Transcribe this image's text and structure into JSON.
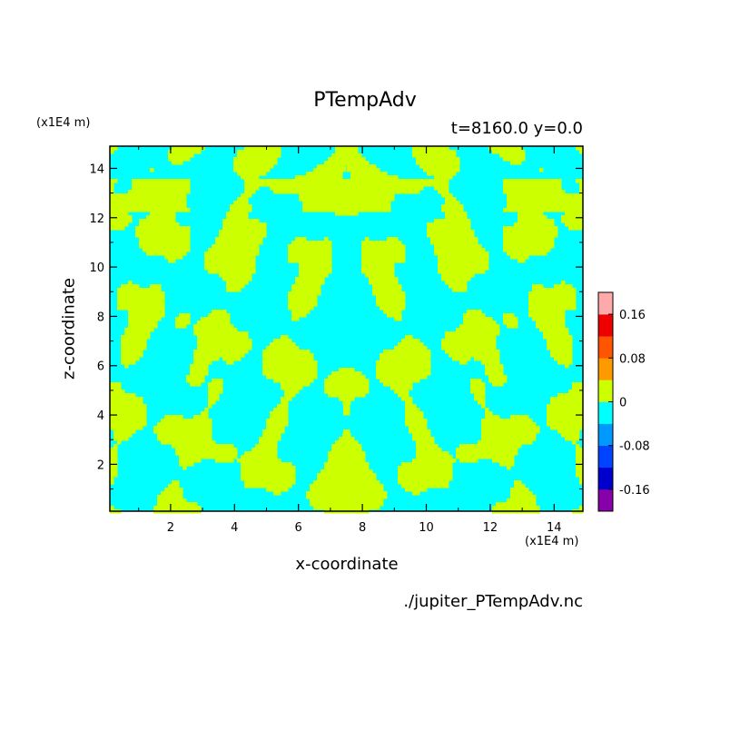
{
  "chart_data": {
    "type": "heatmap",
    "title": "PTempAdv",
    "subtitle": "t=8160.0 y=0.0",
    "xlabel": "x-coordinate",
    "ylabel": "z-coordinate",
    "x_unit": "(x1E4 m)",
    "y_unit": "(x1E4 m)",
    "xlim": [
      0.1,
      14.9
    ],
    "ylim": [
      0.1,
      14.9
    ],
    "x_ticks": [
      2,
      4,
      6,
      8,
      10,
      12,
      14
    ],
    "y_ticks": [
      2,
      4,
      6,
      8,
      10,
      12,
      14
    ],
    "x_tick_labels": [
      "2",
      "4",
      "6",
      "8",
      "10",
      "12",
      "14"
    ],
    "y_tick_labels": [
      "2",
      "4",
      "6",
      "8",
      "10",
      "12",
      "14"
    ],
    "colorbar": {
      "levels": [
        -0.2,
        -0.16,
        -0.12,
        -0.08,
        -0.04,
        0,
        0.04,
        0.08,
        0.12,
        0.16,
        0.2
      ],
      "colors": [
        "#8800aa",
        "#0000cc",
        "#0044ff",
        "#0099ff",
        "#00ffff",
        "#ccff00",
        "#ff9900",
        "#ff5500",
        "#ee0000",
        "#ffaaaa"
      ],
      "tick_values": [
        -0.16,
        -0.08,
        0,
        0.08,
        0.16
      ],
      "tick_labels": [
        "-0.16",
        "-0.08",
        "0",
        "0.08",
        "0.16"
      ]
    },
    "field_colors": {
      "negative": "#00ffff",
      "positive": "#ccff00"
    },
    "source_file": "./jupiter_PTempAdv.nc"
  }
}
